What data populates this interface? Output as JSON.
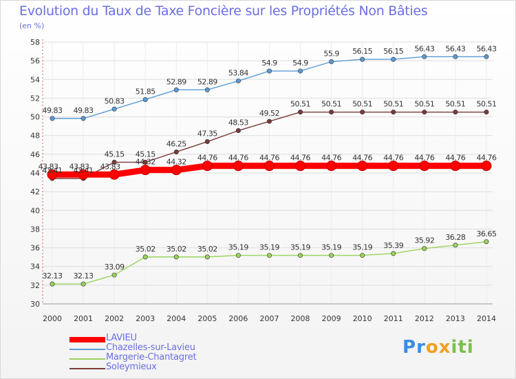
{
  "title": "Evolution du Taux de Taxe Foncière sur les Propriétés Non Bâties",
  "unit": "(en %)",
  "logo_letters": [
    {
      "ch": "P",
      "color": "#3a8de0"
    },
    {
      "ch": "r",
      "color": "#3a8de0"
    },
    {
      "ch": "o",
      "color": "#f0a020"
    },
    {
      "ch": "x",
      "color": "#f0a020"
    },
    {
      "ch": "i",
      "color": "#7ac04a"
    },
    {
      "ch": "t",
      "color": "#7ac04a"
    },
    {
      "ch": "i",
      "color": "#7ac04a"
    }
  ],
  "chart_data": {
    "type": "line",
    "title": "Evolution du Taux de Taxe Foncière sur les Propriétés Non Bâties",
    "ylabel": "(en %)",
    "xlabel": "",
    "x": [
      "2000",
      "2001",
      "2002",
      "2003",
      "2004",
      "2005",
      "2006",
      "2007",
      "2008",
      "2009",
      "2010",
      "2011",
      "2012",
      "2013",
      "2014"
    ],
    "ylim": [
      30,
      58
    ],
    "yticks": [
      30,
      32,
      34,
      36,
      38,
      40,
      42,
      44,
      46,
      48,
      50,
      52,
      54,
      56,
      58
    ],
    "grid": true,
    "legend_position": "bottom-left",
    "series": [
      {
        "name": "LAVIEU",
        "color": "#ff0000",
        "values": [
          43.83,
          43.83,
          43.83,
          44.32,
          44.32,
          44.76,
          44.76,
          44.76,
          44.76,
          44.76,
          44.76,
          44.76,
          44.76,
          44.76,
          44.76
        ],
        "labels": [
          "43.83",
          "43.83",
          "43.83",
          "44.32",
          "44.32",
          "44.76",
          "44.76",
          "44.76",
          "44.76",
          "44.76",
          "44.76",
          "44.76",
          "44.76",
          "44.76",
          "44.76"
        ]
      },
      {
        "name": "Chazelles-sur-Lavieu",
        "color": "#5b9bd5",
        "values": [
          49.83,
          49.83,
          50.83,
          51.85,
          52.89,
          52.89,
          53.84,
          54.9,
          54.9,
          55.9,
          56.15,
          56.15,
          56.43,
          56.43,
          56.43
        ],
        "labels": [
          "49.83",
          "49.83",
          "50.83",
          "51.85",
          "52.89",
          "52.89",
          "53.84",
          "54.9",
          "54.9",
          "55.9",
          "56.15",
          "56.15",
          "56.43",
          "56.43",
          "56.43"
        ]
      },
      {
        "name": "Margerie-Chantagret",
        "color": "#99d35a",
        "values": [
          32.13,
          32.13,
          33.09,
          35.02,
          35.02,
          35.02,
          35.19,
          35.19,
          35.19,
          35.19,
          35.19,
          35.39,
          35.92,
          36.28,
          36.65
        ],
        "labels": [
          "32.13",
          "32.13",
          "33.09",
          "35.02",
          "35.02",
          "35.02",
          "35.19",
          "35.19",
          "35.19",
          "35.19",
          "35.19",
          "35.39",
          "35.92",
          "36.28",
          "36.65"
        ]
      },
      {
        "name": "Soleymieux",
        "color": "#7a3a3a",
        "values": [
          43.41,
          43.41,
          45.15,
          45.15,
          46.25,
          47.35,
          48.53,
          49.52,
          50.51,
          50.51,
          50.51,
          50.51,
          50.51,
          50.51,
          50.51
        ],
        "labels": [
          "43.41",
          "43.41",
          "45.15",
          "45.15",
          "46.25",
          "47.35",
          "48.53",
          "49.52",
          "50.51",
          "50.51",
          "50.51",
          "50.51",
          "50.51",
          "50.51",
          "50.51"
        ]
      }
    ]
  }
}
